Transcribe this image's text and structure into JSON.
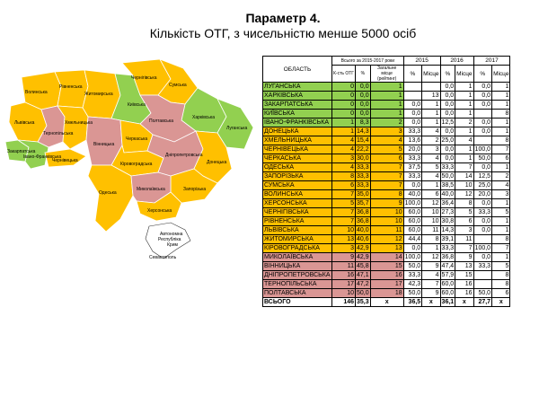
{
  "title": {
    "line1": "Параметр 4.",
    "line2": "Кількість ОТГ, з чисельністю менше 5000 осіб"
  },
  "colors": {
    "green": "#92d050",
    "orange": "#ffc000",
    "red": "#da9694"
  },
  "map_labels": {
    "volynska": "Волинська",
    "rivnenska": "Рівненська",
    "chernihivska": "Чернігівська",
    "sumska": "Сумська",
    "zhytomyrska": "Житомирська",
    "kyivska": "Київська",
    "lvivska": "Львівська",
    "ternopilska": "Тернопільська",
    "khmelnytska": "Хмельницька",
    "kharkivska": "Харківська",
    "poltavska": "Полтавська",
    "luhanska": "Луганська",
    "vinnytska": "Вінницька",
    "cherkaska": "Черкаська",
    "ivano_frankivska": "Івано-Франківська",
    "zakarpatska": "Закарпатська",
    "chernivetska": "Чернівецька",
    "kirovohradska": "Кіровоградська",
    "dnipropetrovska": "Дніпропетровська",
    "donetska": "Донецька",
    "zaporizka": "Запорізька",
    "mykolaivska": "Миколаївська",
    "odeska": "Одеська",
    "khersonska": "Херсонська",
    "krym1": "Автономна",
    "krym2": "Республіка",
    "krym3": "Крим",
    "sevastopol": "Севастополь"
  },
  "table": {
    "header": {
      "oblast": "ОБЛАСТЬ",
      "total_group": "Всього за 2015-2017 роки",
      "count_otg": "К-сть ОТГ",
      "pct": "%",
      "rank": "Загальне місце (рейтинг)",
      "y2015": "2015",
      "y2016": "2016",
      "y2017": "2017",
      "pct_short": "%",
      "place": "Місце"
    },
    "rows": [
      {
        "name": "ЛУГАНСЬКА",
        "cnt": "0",
        "pct": "0,0",
        "rank": "1",
        "p15": "",
        "m15": "",
        "p16": "0,0",
        "m16": "1",
        "p17": "0,0",
        "m17": "1",
        "color": "g"
      },
      {
        "name": "ХАРКІВСЬКА",
        "cnt": "0",
        "pct": "0,0",
        "rank": "1",
        "p15": "",
        "m15": "13",
        "p16": "0,0",
        "m16": "1",
        "p17": "0,0",
        "m17": "1",
        "color": "g"
      },
      {
        "name": "ЗАКАРПАТСЬКА",
        "cnt": "0",
        "pct": "0,0",
        "rank": "1",
        "p15": "0,0",
        "m15": "1",
        "p16": "0,0",
        "m16": "1",
        "p17": "0,0",
        "m17": "1",
        "color": "g"
      },
      {
        "name": "КИЇВСЬКА",
        "cnt": "0",
        "pct": "0,0",
        "rank": "1",
        "p15": "0,0",
        "m15": "1",
        "p16": "0,0",
        "m16": "1",
        "p17": "",
        "m17": "8",
        "color": "g"
      },
      {
        "name": "ІВАНО-ФРАНКІВСЬКА",
        "cnt": "1",
        "pct": "8,3",
        "rank": "2",
        "p15": "0,0",
        "m15": "1",
        "p16": "12,5",
        "m16": "2",
        "p17": "0,0",
        "m17": "1",
        "color": "g"
      },
      {
        "name": "ДОНЕЦЬКА",
        "cnt": "1",
        "pct": "14,3",
        "rank": "3",
        "p15": "33,3",
        "m15": "4",
        "p16": "0,0",
        "m16": "1",
        "p17": "0,0",
        "m17": "1",
        "color": "o"
      },
      {
        "name": "ХМЕЛЬНИЦЬКА",
        "cnt": "4",
        "pct": "15,4",
        "rank": "4",
        "p15": "13,6",
        "m15": "2",
        "p16": "25,0",
        "m16": "4",
        "p17": "",
        "m17": "8",
        "color": "o"
      },
      {
        "name": "ЧЕРНІВЕЦЬКА",
        "cnt": "4",
        "pct": "22,2",
        "rank": "5",
        "p15": "20,0",
        "m15": "3",
        "p16": "0,0",
        "m16": "1",
        "p17": "100,0",
        "m17": "7",
        "color": "o"
      },
      {
        "name": "ЧЕРКАСЬКА",
        "cnt": "3",
        "pct": "30,0",
        "rank": "6",
        "p15": "33,3",
        "m15": "4",
        "p16": "0,0",
        "m16": "1",
        "p17": "50,0",
        "m17": "6",
        "color": "o"
      },
      {
        "name": "ОДЕСЬКА",
        "cnt": "4",
        "pct": "33,3",
        "rank": "7",
        "p15": "37,5",
        "m15": "5",
        "p16": "33,3",
        "m16": "7",
        "p17": "0,0",
        "m17": "1",
        "color": "o"
      },
      {
        "name": "ЗАПОРІЗЬКА",
        "cnt": "8",
        "pct": "33,3",
        "rank": "7",
        "p15": "33,3",
        "m15": "4",
        "p16": "50,0",
        "m16": "14",
        "p17": "12,5",
        "m17": "2",
        "color": "o"
      },
      {
        "name": "СУМСЬКА",
        "cnt": "6",
        "pct": "33,3",
        "rank": "7",
        "p15": "0,0",
        "m15": "1",
        "p16": "38,5",
        "m16": "10",
        "p17": "25,0",
        "m17": "4",
        "color": "o"
      },
      {
        "name": "ВОЛИНСЬКА",
        "cnt": "7",
        "pct": "35,0",
        "rank": "8",
        "p15": "40,0",
        "m15": "6",
        "p16": "40,0",
        "m16": "12",
        "p17": "20,0",
        "m17": "3",
        "color": "o"
      },
      {
        "name": "ХЕРСОНСЬКА",
        "cnt": "5",
        "pct": "35,7",
        "rank": "9",
        "p15": "100,0",
        "m15": "12",
        "p16": "36,4",
        "m16": "8",
        "p17": "0,0",
        "m17": "1",
        "color": "o"
      },
      {
        "name": "ЧЕРНІГІВСЬКА",
        "cnt": "7",
        "pct": "36,8",
        "rank": "10",
        "p15": "60,0",
        "m15": "10",
        "p16": "27,3",
        "m16": "5",
        "p17": "33,3",
        "m17": "5",
        "color": "o"
      },
      {
        "name": "РІВНЕНСЬКА",
        "cnt": "7",
        "pct": "36,8",
        "rank": "10",
        "p15": "60,0",
        "m15": "10",
        "p16": "30,8",
        "m16": "6",
        "p17": "0,0",
        "m17": "1",
        "color": "o"
      },
      {
        "name": "ЛЬВІВСЬКА",
        "cnt": "10",
        "pct": "40,0",
        "rank": "11",
        "p15": "60,0",
        "m15": "11",
        "p16": "14,3",
        "m16": "3",
        "p17": "0,0",
        "m17": "1",
        "color": "o"
      },
      {
        "name": "ЖИТОМИРСЬКА",
        "cnt": "13",
        "pct": "40,6",
        "rank": "12",
        "p15": "44,4",
        "m15": "8",
        "p16": "39,1",
        "m16": "11",
        "p17": "",
        "m17": "8",
        "color": "o"
      },
      {
        "name": "КІРОВОГРАДСЬКА",
        "cnt": "3",
        "pct": "42,9",
        "rank": "13",
        "p15": "0,0",
        "m15": "1",
        "p16": "33,3",
        "m16": "7",
        "p17": "100,0",
        "m17": "7",
        "color": "o"
      },
      {
        "name": "МИКОЛАЇВСЬКА",
        "cnt": "9",
        "pct": "42,9",
        "rank": "14",
        "p15": "100,0",
        "m15": "12",
        "p16": "36,8",
        "m16": "9",
        "p17": "0,0",
        "m17": "1",
        "color": "r"
      },
      {
        "name": "ВІННИЦЬКА",
        "cnt": "11",
        "pct": "45,8",
        "rank": "15",
        "p15": "50,0",
        "m15": "9",
        "p16": "47,4",
        "m16": "13",
        "p17": "33,3",
        "m17": "5",
        "color": "r"
      },
      {
        "name": "ДНІПРОПЕТРОВСЬКА",
        "cnt": "16",
        "pct": "47,1",
        "rank": "16",
        "p15": "33,3",
        "m15": "4",
        "p16": "57,9",
        "m16": "15",
        "p17": "",
        "m17": "8",
        "color": "r"
      },
      {
        "name": "ТЕРНОПІЛЬСЬКА",
        "cnt": "17",
        "pct": "47,2",
        "rank": "17",
        "p15": "42,3",
        "m15": "7",
        "p16": "60,0",
        "m16": "16",
        "p17": "",
        "m17": "8",
        "color": "r"
      },
      {
        "name": "ПОЛТАВСЬКА",
        "cnt": "10",
        "pct": "50,0",
        "rank": "18",
        "p15": "50,0",
        "m15": "9",
        "p16": "60,0",
        "m16": "16",
        "p17": "50,0",
        "m17": "6",
        "color": "r"
      }
    ],
    "total": {
      "name": "ВСЬОГО",
      "cnt": "146",
      "pct": "35,3",
      "rank": "х",
      "p15": "36,5",
      "m15": "х",
      "p16": "36,1",
      "m16": "х",
      "p17": "27,7",
      "m17": "х"
    }
  }
}
